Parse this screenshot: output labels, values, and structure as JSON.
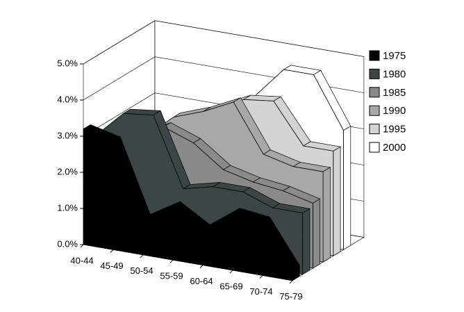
{
  "chart_data": {
    "type": "area3d",
    "categories": [
      "40-44",
      "45-49",
      "50-54",
      "55-59",
      "60-64",
      "65-69",
      "70-74",
      "75-79"
    ],
    "series": [
      {
        "name": "1975",
        "color": "#000000",
        "values": [
          3.2,
          3.0,
          1.0,
          1.5,
          1.0,
          1.6,
          1.5,
          0.3
        ]
      },
      {
        "name": "1980",
        "color": "#3c4646",
        "values": [
          2.8,
          3.6,
          3.7,
          1.8,
          2.0,
          2.0,
          1.7,
          1.7
        ]
      },
      {
        "name": "1985",
        "color": "#8a8a8a",
        "values": [
          2.5,
          2.8,
          3.2,
          2.9,
          2.3,
          2.1,
          2.0,
          1.8
        ]
      },
      {
        "name": "1990",
        "color": "#a8a8a8",
        "values": [
          2.3,
          2.6,
          3.3,
          3.6,
          4.0,
          2.7,
          2.5,
          2.5
        ]
      },
      {
        "name": "1995",
        "color": "#d4d4d4",
        "values": [
          2.2,
          2.4,
          2.9,
          3.5,
          3.9,
          4.0,
          2.9,
          2.9
        ]
      },
      {
        "name": "2000",
        "color": "#ffffff",
        "values": [
          2.0,
          2.3,
          2.7,
          3.0,
          3.8,
          4.7,
          4.7,
          3.3
        ]
      }
    ],
    "ylim": [
      0,
      5
    ],
    "yticks": [
      {
        "value": 0,
        "label": "0.0%"
      },
      {
        "value": 1,
        "label": "1.0%"
      },
      {
        "value": 2,
        "label": "2.0%"
      },
      {
        "value": 3,
        "label": "3.0%"
      },
      {
        "value": 4,
        "label": "4.0%"
      },
      {
        "value": 5,
        "label": "5.0%"
      }
    ],
    "grid": true
  }
}
